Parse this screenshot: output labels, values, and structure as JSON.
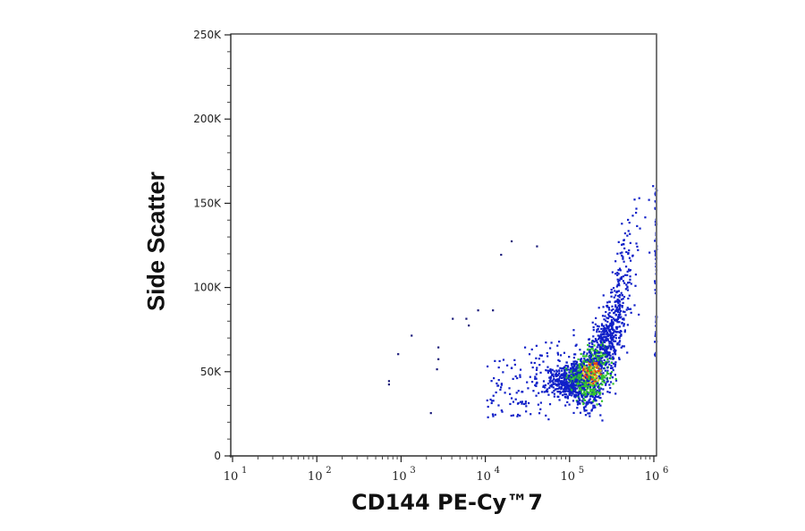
{
  "chart_data": {
    "type": "scatter",
    "title": "",
    "xlabel": "CD144 PE-Cy™7",
    "ylabel": "Side Scatter",
    "xscale": "log",
    "xlim": [
      10,
      1000000
    ],
    "ylim": [
      0,
      250000
    ],
    "x_ticks": [
      {
        "base": "10",
        "exp": "1"
      },
      {
        "base": "10",
        "exp": "2"
      },
      {
        "base": "10",
        "exp": "3"
      },
      {
        "base": "10",
        "exp": "4"
      },
      {
        "base": "10",
        "exp": "5"
      },
      {
        "base": "10",
        "exp": "6"
      }
    ],
    "y_ticks": [
      "0",
      "50K",
      "100K",
      "150K",
      "200K",
      "250K"
    ],
    "grid": false,
    "legend": null,
    "density_coloring": {
      "low": "#1020c8",
      "mid": "#30c030",
      "high": "#e0c020",
      "peak": "#e04020"
    },
    "main_population": {
      "x_center": 200000,
      "y_center": 50000,
      "x_range": [
        10000,
        1000000
      ],
      "y_range": [
        20000,
        165000
      ]
    },
    "outliers": [
      {
        "x": 700,
        "y": 45000
      },
      {
        "x": 700,
        "y": 43000
      },
      {
        "x": 900,
        "y": 61000
      },
      {
        "x": 1300,
        "y": 72000
      },
      {
        "x": 2200,
        "y": 26000
      },
      {
        "x": 2700,
        "y": 65000
      },
      {
        "x": 2700,
        "y": 58000
      },
      {
        "x": 2600,
        "y": 52000
      },
      {
        "x": 4000,
        "y": 82000
      },
      {
        "x": 5800,
        "y": 82000
      },
      {
        "x": 6200,
        "y": 78000
      },
      {
        "x": 8000,
        "y": 87000
      },
      {
        "x": 12000,
        "y": 87000
      },
      {
        "x": 15000,
        "y": 120000
      },
      {
        "x": 20000,
        "y": 128000
      },
      {
        "x": 40000,
        "y": 125000
      }
    ]
  }
}
